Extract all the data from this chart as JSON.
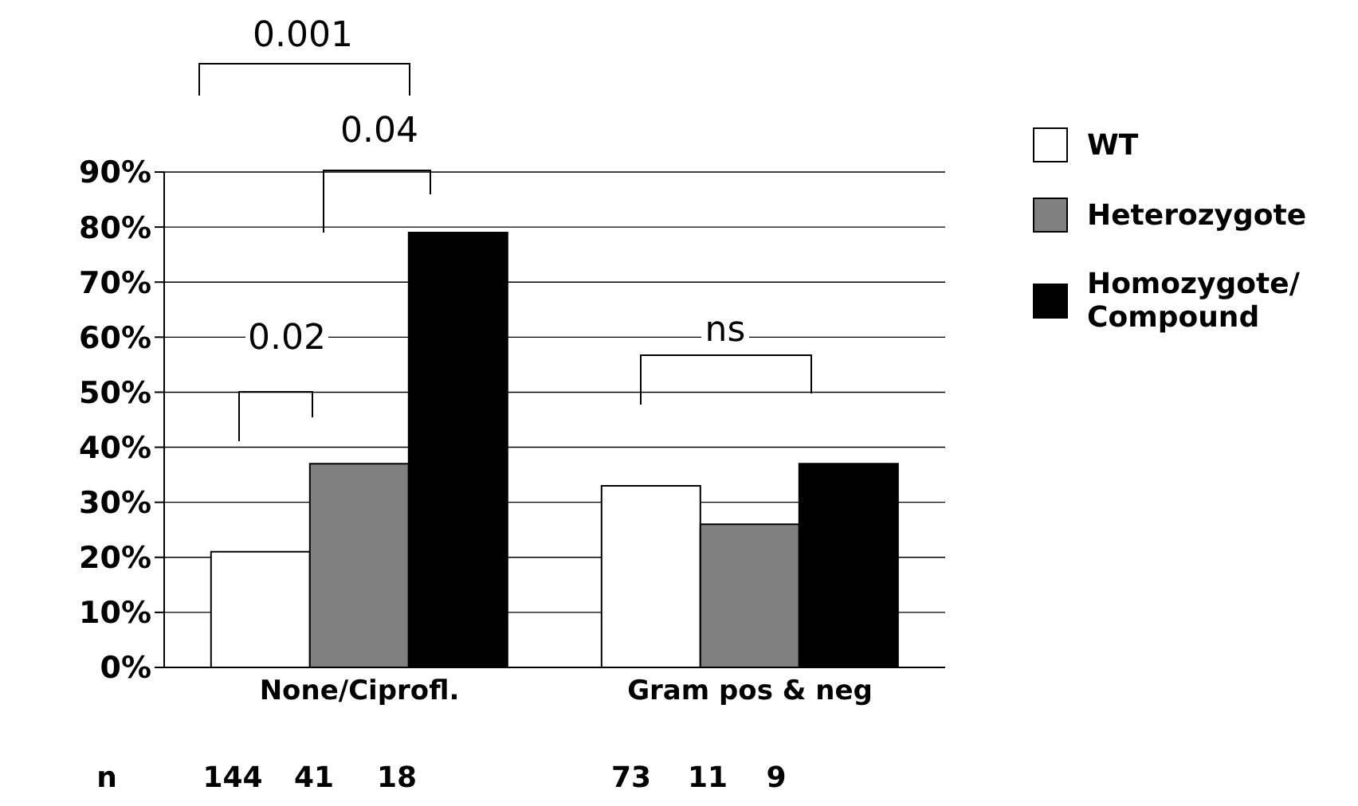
{
  "chart_data": {
    "type": "bar",
    "categories": [
      "None/Ciprofl.",
      "Gram pos & neg"
    ],
    "series": [
      {
        "name": "WT",
        "color": "#ffffff",
        "values": [
          21,
          33
        ]
      },
      {
        "name": "Heterozygote",
        "color": "#808080",
        "values": [
          37,
          26
        ]
      },
      {
        "name": "Homozygote/ Compound",
        "color": "#000000",
        "values": [
          79,
          37
        ]
      }
    ],
    "ylim": [
      0,
      90
    ],
    "yticks": [
      {
        "value": 0,
        "label": "0%"
      },
      {
        "value": 10,
        "label": "10%"
      },
      {
        "value": 20,
        "label": "20%"
      },
      {
        "value": 30,
        "label": "30%"
      },
      {
        "value": 40,
        "label": "40%"
      },
      {
        "value": 50,
        "label": "50%"
      },
      {
        "value": 60,
        "label": "60%"
      },
      {
        "value": 70,
        "label": "70%"
      },
      {
        "value": 80,
        "label": "80%"
      },
      {
        "value": 90,
        "label": "90%"
      }
    ],
    "grid": "y",
    "legend": "top right",
    "annotations": [
      "0.001",
      "0.04",
      "0.02",
      "ns",
      "n",
      "144",
      "41",
      "18",
      "73",
      "11",
      "9"
    ]
  }
}
